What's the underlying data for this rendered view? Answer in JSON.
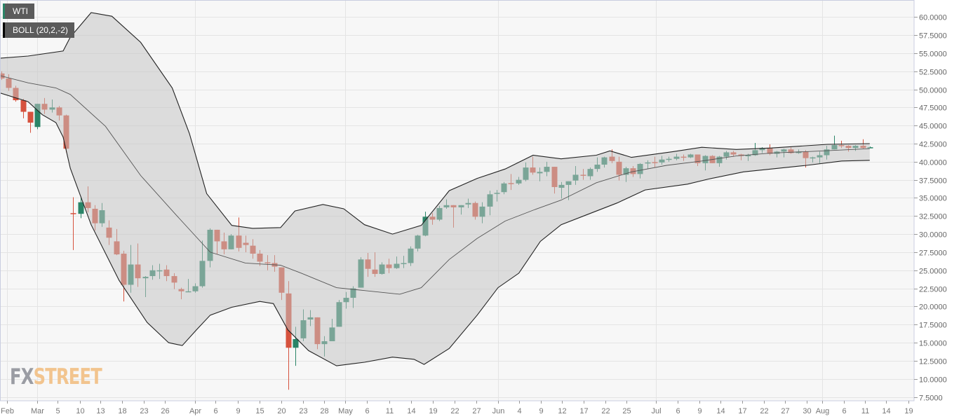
{
  "legend": {
    "instrument": "WTI",
    "indicator": "BOLL (20,2,-2)"
  },
  "watermark": {
    "part1": "FX",
    "part2": "STREET"
  },
  "colors": {
    "up": "#2a8467",
    "down": "#d6523e",
    "band_line": "#222222",
    "middle_line": "#555555",
    "band_fill": "rgba(195,195,195,0.52)",
    "grid": "#e4e4e4",
    "plot_bg": "#f7f7f7",
    "border": "#c9cde0"
  },
  "chart_data": {
    "type": "candlestick",
    "title": "WTI",
    "indicator": "BOLL (20,2,-2)",
    "ylim": [
      7.5,
      60
    ],
    "grid": true,
    "y_ticks": [
      "7.5000",
      "10.0000",
      "12.5000",
      "15.0000",
      "17.5000",
      "20.0000",
      "22.5000",
      "25.0000",
      "27.5000",
      "30.0000",
      "32.5000",
      "35.0000",
      "37.5000",
      "40.0000",
      "42.5000",
      "45.0000",
      "47.5000",
      "50.0000",
      "52.5000",
      "55.0000",
      "57.5000",
      "60.0000"
    ],
    "x_ticks": [
      {
        "label": "Feb",
        "i": 0.8,
        "month": true
      },
      {
        "label": "Mar",
        "i": 5.0,
        "month": true
      },
      {
        "label": "5",
        "i": 7.8
      },
      {
        "label": "10",
        "i": 10.9
      },
      {
        "label": "13",
        "i": 13.8
      },
      {
        "label": "18",
        "i": 16.8
      },
      {
        "label": "23",
        "i": 19.8
      },
      {
        "label": "26",
        "i": 22.8
      },
      {
        "label": "Apr",
        "i": 27.0,
        "month": true
      },
      {
        "label": "6",
        "i": 29.8
      },
      {
        "label": "9",
        "i": 32.9
      },
      {
        "label": "15",
        "i": 36.0
      },
      {
        "label": "20",
        "i": 39.0
      },
      {
        "label": "23",
        "i": 42.0
      },
      {
        "label": "28",
        "i": 45.0
      },
      {
        "label": "May",
        "i": 47.9,
        "month": true
      },
      {
        "label": "6",
        "i": 50.9
      },
      {
        "label": "11",
        "i": 54.1
      },
      {
        "label": "14",
        "i": 57.1
      },
      {
        "label": "19",
        "i": 60.1
      },
      {
        "label": "22",
        "i": 63.1
      },
      {
        "label": "27",
        "i": 66.2
      },
      {
        "label": "Jun",
        "i": 69.2,
        "month": true
      },
      {
        "label": "4",
        "i": 72.1
      },
      {
        "label": "9",
        "i": 75.2
      },
      {
        "label": "12",
        "i": 78.1
      },
      {
        "label": "17",
        "i": 81.1
      },
      {
        "label": "22",
        "i": 84.2
      },
      {
        "label": "25",
        "i": 87.1
      },
      {
        "label": "Jul",
        "i": 91.2,
        "month": true
      },
      {
        "label": "6",
        "i": 94.2
      },
      {
        "label": "9",
        "i": 97.3
      },
      {
        "label": "14",
        "i": 100.2
      },
      {
        "label": "17",
        "i": 103.2
      },
      {
        "label": "22",
        "i": 106.3
      },
      {
        "label": "27",
        "i": 109.2
      },
      {
        "label": "30",
        "i": 112.2
      },
      {
        "label": "Aug",
        "i": 114.4,
        "month": true
      },
      {
        "label": "6",
        "i": 117.4
      },
      {
        "label": "11",
        "i": 120.3
      },
      {
        "label": "14",
        "i": 123.3
      },
      {
        "label": "19",
        "i": 126.4
      }
    ],
    "ohlc_fields": [
      "open",
      "high",
      "low",
      "close"
    ],
    "candles": [
      [
        52.2,
        52.5,
        51.3,
        51.5
      ],
      [
        51.5,
        52.1,
        49.8,
        50.2
      ],
      [
        50.2,
        50.5,
        48.3,
        48.5
      ],
      [
        48.5,
        48.7,
        46.0,
        46.9
      ],
      [
        46.9,
        46.9,
        44.0,
        45.4
      ],
      [
        44.8,
        48.0,
        44.5,
        48.0
      ],
      [
        48.0,
        48.8,
        46.6,
        47.2
      ],
      [
        47.2,
        48.6,
        46.8,
        47.5
      ],
      [
        47.5,
        47.7,
        45.7,
        46.4
      ],
      [
        46.4,
        46.5,
        41.3,
        41.8
      ],
      [
        32.9,
        35.1,
        27.8,
        32.8
      ],
      [
        32.8,
        35.2,
        32.2,
        34.4
      ],
      [
        34.4,
        36.6,
        33.0,
        33.6
      ],
      [
        33.5,
        34.0,
        30.5,
        31.5
      ],
      [
        31.5,
        34.3,
        31.0,
        33.3
      ],
      [
        30.9,
        31.9,
        28.5,
        29.5
      ],
      [
        29.0,
        30.7,
        27.1,
        27.2
      ],
      [
        27.3,
        27.7,
        20.7,
        23.0
      ],
      [
        23.0,
        28.5,
        21.9,
        25.8
      ],
      [
        25.8,
        28.7,
        22.7,
        23.9
      ],
      [
        23.9,
        24.2,
        21.3,
        24.1
      ],
      [
        24.2,
        25.7,
        23.7,
        25.0
      ],
      [
        24.9,
        25.9,
        23.8,
        25.0
      ],
      [
        25.1,
        25.7,
        23.5,
        24.2
      ],
      [
        24.2,
        24.6,
        22.4,
        23.3
      ],
      [
        22.4,
        22.6,
        21.0,
        22.1
      ],
      [
        22.0,
        23.8,
        22.0,
        22.1
      ],
      [
        22.1,
        23.2,
        21.9,
        22.8
      ],
      [
        22.8,
        29.1,
        22.6,
        26.3
      ],
      [
        26.3,
        30.8,
        25.4,
        30.6
      ],
      [
        30.6,
        30.6,
        27.2,
        29.0
      ],
      [
        29.0,
        30.2,
        27.2,
        27.9
      ],
      [
        27.9,
        30.0,
        27.9,
        29.8
      ],
      [
        29.8,
        32.3,
        27.6,
        28.1
      ],
      [
        28.8,
        29.8,
        27.5,
        28.5
      ],
      [
        28.4,
        29.3,
        26.6,
        27.3
      ],
      [
        27.3,
        27.8,
        25.6,
        26.2
      ],
      [
        26.1,
        27.1,
        25.0,
        26.05
      ],
      [
        26.0,
        27.1,
        24.8,
        25.5
      ],
      [
        25.4,
        25.4,
        20.9,
        21.9
      ],
      [
        21.8,
        23.5,
        8.5,
        14.3
      ],
      [
        14.3,
        17.2,
        11.8,
        15.5
      ],
      [
        15.6,
        19.6,
        15.2,
        18.1
      ],
      [
        18.2,
        19.5,
        17.3,
        18.5
      ],
      [
        18.5,
        18.5,
        14.1,
        14.8
      ],
      [
        14.8,
        15.9,
        13.1,
        15.2
      ],
      [
        15.2,
        18.3,
        15.2,
        17.1
      ],
      [
        17.2,
        20.9,
        17.2,
        20.6
      ],
      [
        20.6,
        22.0,
        19.7,
        21.2
      ],
      [
        21.2,
        22.8,
        19.8,
        22.5
      ],
      [
        22.6,
        26.8,
        22.6,
        26.5
      ],
      [
        26.5,
        27.4,
        24.1,
        25.2
      ],
      [
        25.1,
        27.5,
        24.1,
        24.5
      ],
      [
        24.5,
        26.1,
        24.4,
        25.8
      ],
      [
        25.8,
        26.6,
        24.6,
        25.3
      ],
      [
        25.3,
        26.9,
        25.2,
        25.9
      ],
      [
        25.9,
        27.0,
        25.3,
        26.0
      ],
      [
        26.0,
        28.3,
        25.6,
        28.0
      ],
      [
        28.0,
        29.9,
        27.6,
        29.8
      ],
      [
        29.8,
        33.1,
        29.7,
        32.4
      ],
      [
        32.4,
        32.9,
        31.3,
        32.0
      ],
      [
        32.0,
        33.9,
        31.8,
        33.6
      ],
      [
        33.7,
        34.8,
        33.5,
        34.0
      ],
      [
        34.0,
        34.0,
        30.9,
        33.7
      ],
      [
        33.7,
        34.0,
        32.7,
        34.0
      ],
      [
        34.1,
        34.9,
        33.6,
        34.3
      ],
      [
        34.3,
        34.5,
        32.0,
        32.4
      ],
      [
        32.4,
        34.4,
        31.5,
        33.8
      ],
      [
        33.8,
        36.0,
        32.6,
        35.5
      ],
      [
        35.6,
        36.1,
        34.5,
        35.7
      ],
      [
        35.8,
        37.2,
        35.5,
        37.0
      ],
      [
        37.05,
        38.3,
        36.1,
        37.0
      ],
      [
        37.0,
        37.9,
        36.8,
        37.5
      ],
      [
        37.5,
        39.9,
        37.3,
        39.2
      ],
      [
        39.2,
        40.7,
        38.2,
        38.5
      ],
      [
        38.4,
        39.2,
        37.3,
        38.6
      ],
      [
        38.6,
        40.0,
        38.0,
        39.3
      ],
      [
        39.3,
        39.3,
        35.6,
        36.5
      ],
      [
        36.4,
        37.2,
        34.9,
        36.8
      ],
      [
        36.8,
        37.3,
        34.7,
        37.3
      ],
      [
        37.4,
        39.4,
        36.8,
        38.2
      ],
      [
        38.2,
        39.0,
        37.5,
        38.1
      ],
      [
        38.0,
        39.2,
        37.5,
        39.0
      ],
      [
        39.0,
        40.6,
        38.6,
        39.6
      ],
      [
        39.6,
        40.7,
        39.2,
        40.6
      ],
      [
        40.7,
        41.7,
        39.8,
        40.1
      ],
      [
        40.0,
        40.7,
        37.4,
        38.2
      ],
      [
        38.2,
        39.3,
        37.2,
        39.1
      ],
      [
        39.1,
        39.4,
        37.9,
        38.3
      ],
      [
        38.3,
        39.8,
        37.7,
        39.7
      ],
      [
        39.8,
        40.2,
        39.0,
        39.9
      ],
      [
        39.95,
        40.7,
        39.2,
        39.9
      ],
      [
        39.9,
        40.8,
        39.6,
        40.3
      ],
      [
        40.3,
        40.7,
        40.0,
        40.4
      ],
      [
        40.4,
        41.1,
        40.2,
        40.7
      ],
      [
        40.7,
        41.0,
        40.1,
        40.6
      ],
      [
        40.6,
        41.1,
        40.5,
        41.0
      ],
      [
        41.0,
        41.0,
        39.4,
        39.8
      ],
      [
        39.8,
        40.9,
        38.8,
        40.8
      ],
      [
        40.8,
        40.9,
        39.8,
        39.8
      ],
      [
        39.8,
        40.8,
        39.3,
        40.7
      ],
      [
        40.7,
        41.5,
        40.3,
        41.3
      ],
      [
        41.3,
        41.5,
        40.7,
        41.0
      ],
      [
        41.0,
        41.1,
        40.2,
        40.8
      ],
      [
        40.8,
        41.1,
        40.1,
        40.9
      ],
      [
        40.9,
        42.6,
        40.8,
        41.6
      ],
      [
        41.6,
        42.0,
        41.2,
        41.9
      ],
      [
        41.9,
        42.4,
        40.9,
        41.1
      ],
      [
        41.1,
        41.5,
        40.6,
        41.4
      ],
      [
        41.4,
        41.8,
        40.6,
        41.7
      ],
      [
        41.7,
        42.0,
        41.1,
        41.2
      ],
      [
        41.2,
        41.7,
        41.1,
        41.4
      ],
      [
        41.4,
        41.6,
        39.2,
        40.5
      ],
      [
        40.5,
        40.7,
        39.9,
        40.6
      ],
      [
        40.6,
        41.4,
        39.8,
        40.9
      ],
      [
        40.9,
        42.2,
        40.3,
        41.7
      ],
      [
        41.7,
        43.6,
        41.7,
        42.3
      ],
      [
        42.3,
        42.9,
        41.9,
        42.2
      ],
      [
        42.2,
        42.3,
        41.4,
        41.9
      ],
      [
        41.9,
        42.3,
        41.5,
        42.2
      ],
      [
        42.2,
        43.1,
        41.8,
        41.9
      ],
      [
        41.9,
        42.1,
        41.9,
        42.0
      ]
    ],
    "bollinger": {
      "upper": [
        [
          -0.2,
          54.3
        ],
        [
          3.7,
          54.6
        ],
        [
          8.6,
          55.3
        ],
        [
          9.6,
          57.2
        ],
        [
          12.5,
          60.6
        ],
        [
          15.4,
          60.1
        ],
        [
          19.4,
          56.5
        ],
        [
          23.8,
          50.2
        ],
        [
          26.2,
          43.9
        ],
        [
          28.6,
          35.6
        ],
        [
          32.1,
          31.2
        ],
        [
          35,
          30.8
        ],
        [
          38.9,
          30.9
        ],
        [
          40.9,
          33.2
        ],
        [
          44.8,
          34.1
        ],
        [
          47.7,
          33.5
        ],
        [
          50.6,
          31.3
        ],
        [
          54.5,
          30.0
        ],
        [
          58.5,
          31.2
        ],
        [
          62.4,
          36.0
        ],
        [
          66.3,
          37.7
        ],
        [
          70.2,
          39.0
        ],
        [
          74.1,
          40.9
        ],
        [
          78,
          40.4
        ],
        [
          82.9,
          40.9
        ],
        [
          84.8,
          41.5
        ],
        [
          87.8,
          40.6
        ],
        [
          93.6,
          41.4
        ],
        [
          97.6,
          42.0
        ],
        [
          102.4,
          41.7
        ],
        [
          107.3,
          41.9
        ],
        [
          115.1,
          42.4
        ],
        [
          121,
          42.5
        ]
      ],
      "middle": [
        [
          -0.2,
          51.9
        ],
        [
          3.7,
          50.9
        ],
        [
          7.6,
          50.2
        ],
        [
          9.6,
          49.3
        ],
        [
          14.5,
          44.9
        ],
        [
          19.4,
          38.1
        ],
        [
          24.2,
          32.8
        ],
        [
          29.1,
          27.5
        ],
        [
          34,
          26.0
        ],
        [
          38.9,
          25.7
        ],
        [
          41.8,
          24.6
        ],
        [
          46.7,
          22.6
        ],
        [
          50.6,
          22.2
        ],
        [
          55.5,
          21.7
        ],
        [
          58.5,
          22.6
        ],
        [
          62.4,
          26.5
        ],
        [
          66.3,
          29.4
        ],
        [
          70.2,
          31.8
        ],
        [
          74.1,
          33.3
        ],
        [
          78,
          34.7
        ],
        [
          82.9,
          37.1
        ],
        [
          87.8,
          38.6
        ],
        [
          92.7,
          39.5
        ],
        [
          97.6,
          40.1
        ],
        [
          102.4,
          40.8
        ],
        [
          107.3,
          41.2
        ],
        [
          112.2,
          41.4
        ],
        [
          121,
          41.8
        ]
      ],
      "lower": [
        [
          -0.2,
          49.5
        ],
        [
          3.7,
          48.3
        ],
        [
          5.7,
          46.5
        ],
        [
          7.6,
          45.4
        ],
        [
          8.6,
          43.4
        ],
        [
          9.6,
          39.1
        ],
        [
          12.5,
          31.3
        ],
        [
          16.4,
          23.6
        ],
        [
          20.3,
          17.8
        ],
        [
          23.3,
          15.0
        ],
        [
          25.2,
          14.6
        ],
        [
          27.2,
          16.8
        ],
        [
          29.1,
          18.8
        ],
        [
          32.1,
          19.9
        ],
        [
          36,
          20.7
        ],
        [
          37.9,
          20.4
        ],
        [
          39.9,
          16.8
        ],
        [
          42.8,
          13.9
        ],
        [
          46.7,
          11.8
        ],
        [
          50.6,
          12.3
        ],
        [
          54.5,
          13.0
        ],
        [
          57.5,
          12.7
        ],
        [
          58.9,
          12.0
        ],
        [
          62.4,
          14.2
        ],
        [
          66.3,
          18.8
        ],
        [
          69.2,
          22.6
        ],
        [
          72.1,
          24.6
        ],
        [
          75.1,
          29.0
        ],
        [
          78,
          31.3
        ],
        [
          81.9,
          32.8
        ],
        [
          85.8,
          34.3
        ],
        [
          89.7,
          36.1
        ],
        [
          95.6,
          36.9
        ],
        [
          98.5,
          37.6
        ],
        [
          103.4,
          38.6
        ],
        [
          107.3,
          39.0
        ],
        [
          112.2,
          39.5
        ],
        [
          117.1,
          40.1
        ],
        [
          121,
          40.2
        ]
      ]
    }
  }
}
